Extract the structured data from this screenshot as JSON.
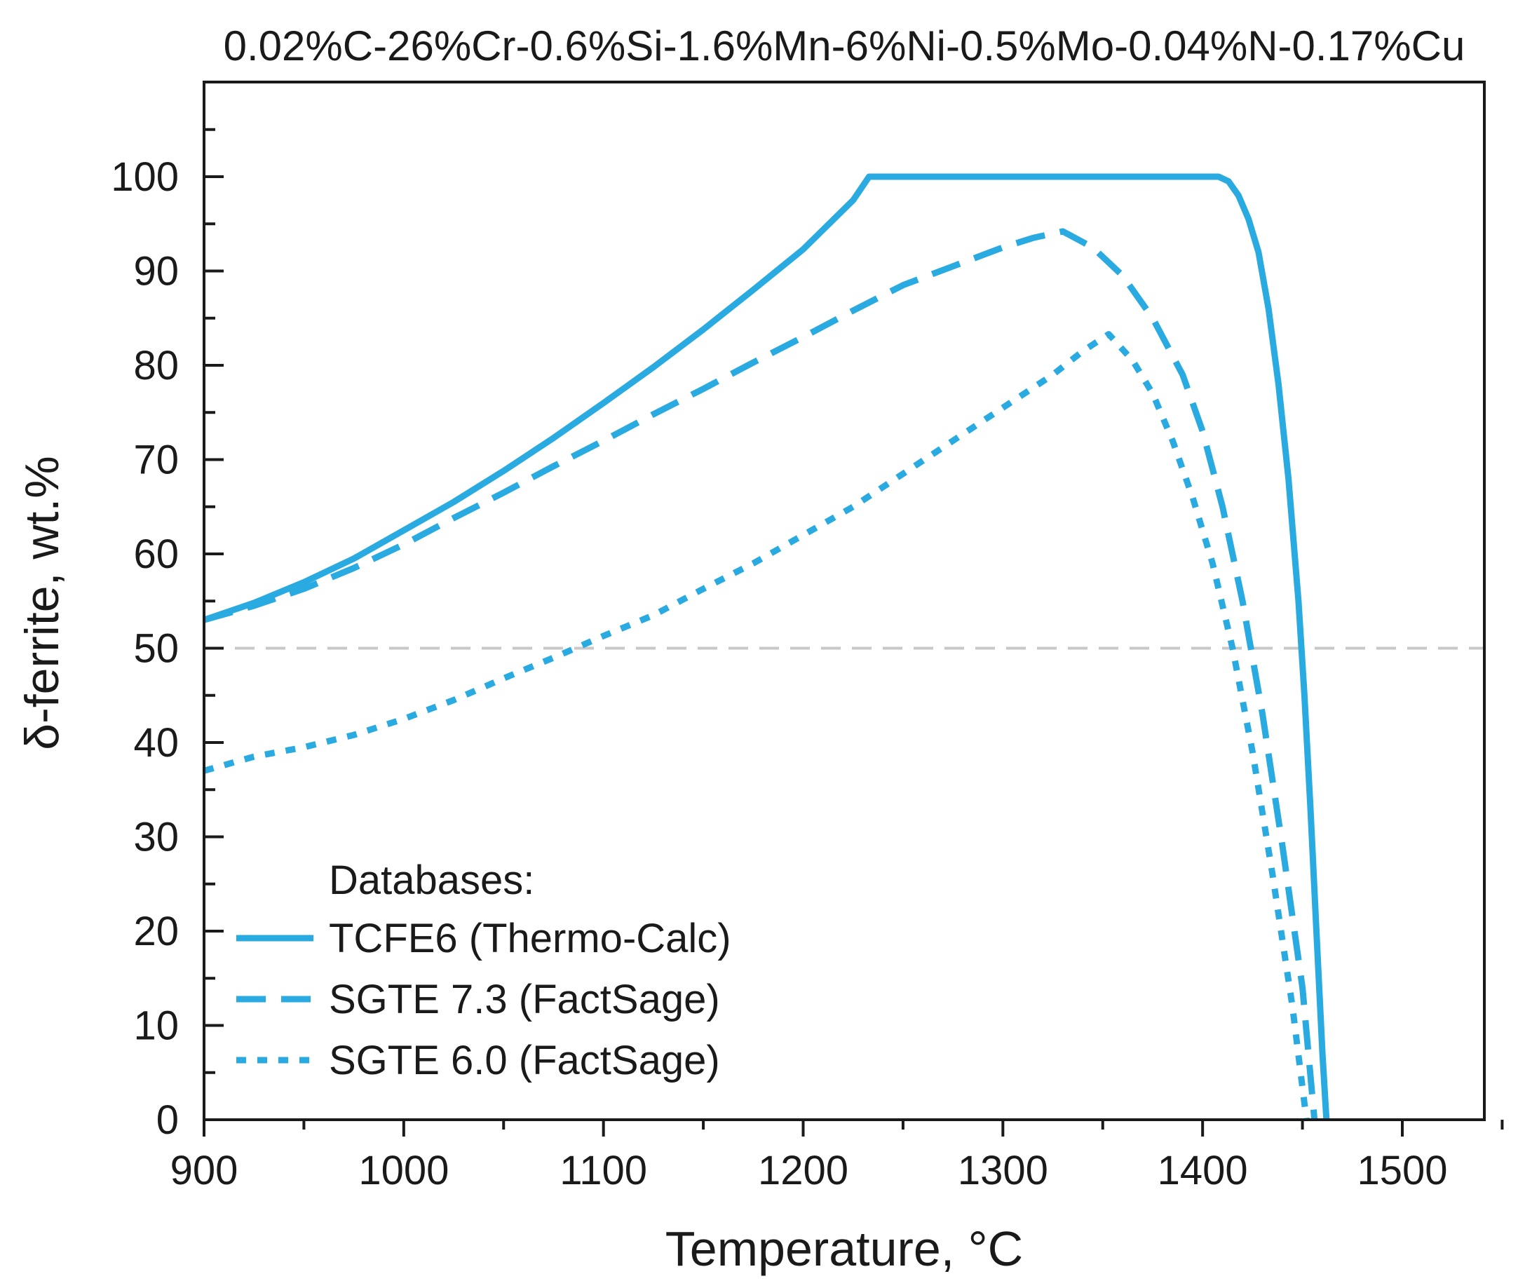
{
  "chart_data": {
    "type": "line",
    "title": "0.02%C-26%Cr-0.6%Si-1.6%Mn-6%Ni-0.5%Mo-0.04%N-0.17%Cu",
    "xlabel": "Temperature, °C",
    "ylabel": "δ-ferrite, wt.%",
    "xlim": [
      900,
      1550
    ],
    "ylim": [
      0,
      110
    ],
    "xticks": [
      900,
      1000,
      1100,
      1200,
      1300,
      1400,
      1500
    ],
    "yticks": [
      0,
      10,
      20,
      30,
      40,
      50,
      60,
      70,
      80,
      90,
      100
    ],
    "reference_line": {
      "y": 50,
      "style": "dashed",
      "color": "#c8c8c8"
    },
    "legend": {
      "title": "Databases:",
      "position": "lower-left"
    },
    "series": [
      {
        "name": "TCFE6 (Thermo-Calc)",
        "style": "solid",
        "color": "#29aae1",
        "x": [
          900,
          925,
          950,
          975,
          1000,
          1025,
          1050,
          1075,
          1100,
          1125,
          1150,
          1175,
          1200,
          1225,
          1233,
          1300,
          1350,
          1408,
          1413,
          1418,
          1423,
          1428,
          1433,
          1438,
          1443,
          1448,
          1451,
          1454,
          1457,
          1460,
          1462
        ],
        "y": [
          53,
          54.8,
          57,
          59.5,
          62.5,
          65.5,
          68.8,
          72.3,
          76,
          79.8,
          83.8,
          88,
          92.3,
          97.5,
          100,
          100,
          100,
          100,
          99.5,
          98,
          95.5,
          92,
          86,
          78,
          68,
          55,
          45,
          33,
          20,
          7,
          0
        ]
      },
      {
        "name": "SGTE 7.3 (FactSage)",
        "style": "dashed",
        "color": "#29aae1",
        "x": [
          900,
          925,
          950,
          975,
          1000,
          1025,
          1050,
          1075,
          1100,
          1125,
          1150,
          1175,
          1200,
          1225,
          1250,
          1275,
          1300,
          1315,
          1330,
          1345,
          1360,
          1375,
          1390,
          1400,
          1410,
          1420,
          1430,
          1440,
          1450,
          1456
        ],
        "y": [
          53,
          54.5,
          56.3,
          58.5,
          61,
          63.8,
          66.5,
          69.3,
          72,
          74.8,
          77.5,
          80.3,
          83,
          85.8,
          88.5,
          90.5,
          92.5,
          93.5,
          94.2,
          92.5,
          89.5,
          85,
          79,
          73,
          65,
          55,
          43,
          29,
          14,
          0
        ]
      },
      {
        "name": "SGTE 6.0 (FactSage)",
        "style": "dotted",
        "color": "#29aae1",
        "x": [
          900,
          925,
          950,
          975,
          1000,
          1025,
          1050,
          1075,
          1100,
          1125,
          1150,
          1175,
          1200,
          1225,
          1250,
          1275,
          1300,
          1325,
          1340,
          1353,
          1365,
          1375,
          1385,
          1395,
          1405,
          1415,
          1425,
          1435,
          1445,
          1452
        ],
        "y": [
          37,
          38.5,
          39.5,
          40.8,
          42.5,
          44.5,
          46.8,
          49,
          51.3,
          53.5,
          56.3,
          59,
          62,
          65,
          68.5,
          72,
          75.5,
          79,
          81.5,
          83.3,
          80.5,
          77,
          72,
          66,
          59,
          50,
          39,
          26,
          12,
          0
        ]
      }
    ]
  }
}
